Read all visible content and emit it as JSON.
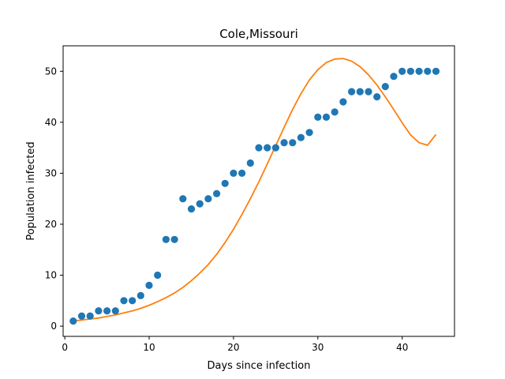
{
  "chart_data": {
    "type": "scatter",
    "title": "Cole,Missouri",
    "xlabel": "Days since infection",
    "ylabel": "Population infected",
    "xlim": [
      -0.2,
      46.2
    ],
    "ylim": [
      -2.0,
      55.0
    ],
    "xticks": [
      0,
      10,
      20,
      30,
      40
    ],
    "yticks": [
      0,
      10,
      20,
      30,
      40,
      50
    ],
    "grid": false,
    "series": [
      {
        "kind": "scatter",
        "color": "#1f77b4",
        "x": [
          1,
          2,
          3,
          4,
          5,
          6,
          7,
          8,
          9,
          10,
          11,
          12,
          13,
          14,
          15,
          16,
          17,
          18,
          19,
          20,
          21,
          22,
          23,
          24,
          25,
          26,
          27,
          28,
          29,
          30,
          31,
          32,
          33,
          34,
          35,
          36,
          37,
          38,
          39,
          40,
          41,
          42,
          43,
          44
        ],
        "y": [
          1,
          2,
          2,
          3,
          3,
          3,
          5,
          5,
          6,
          8,
          10,
          17,
          17,
          25,
          23,
          24,
          25,
          26,
          28,
          30,
          30,
          32,
          35,
          35,
          35,
          36,
          36,
          37,
          38,
          41,
          41,
          42,
          44,
          46,
          46,
          46,
          45,
          47,
          49,
          50,
          50,
          50,
          50,
          50
        ]
      },
      {
        "kind": "line",
        "color": "#ff7f0e",
        "x": [
          1,
          2,
          3,
          4,
          5,
          6,
          7,
          8,
          9,
          10,
          11,
          12,
          13,
          14,
          15,
          16,
          17,
          18,
          19,
          20,
          21,
          22,
          23,
          24,
          25,
          26,
          27,
          28,
          29,
          30,
          31,
          32,
          33,
          34,
          35,
          36,
          37,
          38,
          39,
          40,
          41,
          42,
          43,
          44
        ],
        "y": [
          1.0,
          1.2,
          1.4,
          1.6,
          1.9,
          2.2,
          2.6,
          3.0,
          3.5,
          4.1,
          4.8,
          5.6,
          6.5,
          7.6,
          8.9,
          10.4,
          12.1,
          14.1,
          16.4,
          19.0,
          21.9,
          25.0,
          28.3,
          31.8,
          35.4,
          39.0,
          42.5,
          45.6,
          48.3,
          50.3,
          51.7,
          52.4,
          52.5,
          52.0,
          50.9,
          49.3,
          47.3,
          45.0,
          42.5,
          39.9,
          37.5,
          36.0,
          35.5,
          37.6
        ]
      }
    ]
  }
}
